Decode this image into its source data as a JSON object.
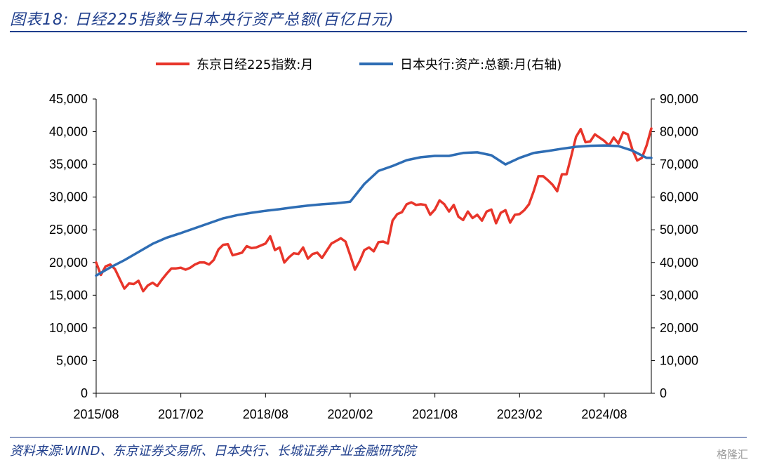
{
  "header": {
    "title": "图表18: 日经225指数与日本央行资产总额(百亿日元)"
  },
  "footer": {
    "source": "资料来源:WIND、东京证券交易所、日本央行、长城证券产业金融研究院",
    "watermark": "格隆汇"
  },
  "colors": {
    "nikkei": "#e8352a",
    "boj": "#2e6db4",
    "accent": "#1f3e8c"
  },
  "chart_data": {
    "type": "line",
    "x_ticks": [
      "2015/08",
      "2017/02",
      "2018/08",
      "2020/02",
      "2021/08",
      "2023/02",
      "2024/08"
    ],
    "x_start": "2015/08",
    "x_end": "2025/06",
    "left_axis": {
      "min": 0,
      "max": 45000,
      "ticks": [
        "0",
        "5,000",
        "10,000",
        "15,000",
        "20,000",
        "25,000",
        "30,000",
        "35,000",
        "40,000",
        "45,000"
      ]
    },
    "right_axis": {
      "min": 0,
      "max": 90000,
      "ticks": [
        "0",
        "10,000",
        "20,000",
        "30,000",
        "40,000",
        "50,000",
        "60,000",
        "70,000",
        "80,000",
        "90,000"
      ]
    },
    "legend_placement": "top",
    "series": [
      {
        "name": "东京日经225指数:月",
        "axis": "left",
        "x": [
          "2015/08",
          "2015/09",
          "2015/10",
          "2015/11",
          "2015/12",
          "2016/01",
          "2016/02",
          "2016/03",
          "2016/04",
          "2016/05",
          "2016/06",
          "2016/07",
          "2016/08",
          "2016/09",
          "2016/10",
          "2016/11",
          "2016/12",
          "2017/01",
          "2017/02",
          "2017/03",
          "2017/04",
          "2017/05",
          "2017/06",
          "2017/07",
          "2017/08",
          "2017/09",
          "2017/10",
          "2017/11",
          "2017/12",
          "2018/01",
          "2018/02",
          "2018/03",
          "2018/04",
          "2018/05",
          "2018/06",
          "2018/07",
          "2018/08",
          "2018/09",
          "2018/10",
          "2018/11",
          "2018/12",
          "2019/01",
          "2019/02",
          "2019/03",
          "2019/04",
          "2019/05",
          "2019/06",
          "2019/07",
          "2019/08",
          "2019/09",
          "2019/10",
          "2019/11",
          "2019/12",
          "2020/01",
          "2020/02",
          "2020/03",
          "2020/04",
          "2020/05",
          "2020/06",
          "2020/07",
          "2020/08",
          "2020/09",
          "2020/10",
          "2020/11",
          "2020/12",
          "2021/01",
          "2021/02",
          "2021/03",
          "2021/04",
          "2021/05",
          "2021/06",
          "2021/07",
          "2021/08",
          "2021/09",
          "2021/10",
          "2021/11",
          "2021/12",
          "2022/01",
          "2022/02",
          "2022/03",
          "2022/04",
          "2022/05",
          "2022/06",
          "2022/07",
          "2022/08",
          "2022/09",
          "2022/10",
          "2022/11",
          "2022/12",
          "2023/01",
          "2023/02",
          "2023/03",
          "2023/04",
          "2023/05",
          "2023/06",
          "2023/07",
          "2023/08",
          "2023/09",
          "2023/10",
          "2023/11",
          "2023/12",
          "2024/01",
          "2024/02",
          "2024/03",
          "2024/04",
          "2024/05",
          "2024/06",
          "2024/07",
          "2024/08",
          "2024/09",
          "2024/10",
          "2024/11",
          "2024/12",
          "2025/01",
          "2025/02",
          "2025/03",
          "2025/04",
          "2025/05",
          "2025/06"
        ],
        "values": [
          20000,
          18100,
          19400,
          19700,
          19000,
          17500,
          16000,
          16800,
          16700,
          17200,
          15600,
          16500,
          16900,
          16400,
          17400,
          18300,
          19100,
          19100,
          19200,
          18900,
          19200,
          19700,
          20000,
          20000,
          19700,
          20400,
          22000,
          22700,
          22800,
          21100,
          21300,
          21500,
          22500,
          22200,
          22300,
          22600,
          22900,
          24000,
          21900,
          22300,
          20000,
          20800,
          21400,
          21300,
          22300,
          20600,
          21300,
          21500,
          20700,
          21800,
          22900,
          23300,
          23700,
          23200,
          21100,
          18900,
          20200,
          21900,
          22300,
          21700,
          23100,
          23200,
          22900,
          26400,
          27400,
          27700,
          28900,
          29200,
          28800,
          28900,
          28800,
          27300,
          28100,
          29500,
          28900,
          27800,
          28800,
          27000,
          26500,
          27800,
          26800,
          27300,
          26400,
          27800,
          28100,
          26000,
          27600,
          28000,
          26100,
          27300,
          27400,
          28000,
          28900,
          30900,
          33200,
          33200,
          32600,
          31900,
          30900,
          33500,
          33500,
          36300,
          39200,
          40400,
          38400,
          38500,
          39600,
          39100,
          38600,
          37900,
          39100,
          38200,
          39900,
          39600,
          37200,
          35600,
          36000,
          37900,
          40500
        ]
      },
      {
        "name": "日本央行:资产:总额:月(右轴)",
        "axis": "right",
        "x": [
          "2015/08",
          "2015/11",
          "2016/02",
          "2016/05",
          "2016/08",
          "2016/11",
          "2017/02",
          "2017/05",
          "2017/08",
          "2017/11",
          "2018/02",
          "2018/05",
          "2018/08",
          "2018/11",
          "2019/02",
          "2019/05",
          "2019/08",
          "2019/11",
          "2020/02",
          "2020/05",
          "2020/08",
          "2020/11",
          "2021/02",
          "2021/05",
          "2021/08",
          "2021/11",
          "2022/02",
          "2022/05",
          "2022/08",
          "2022/11",
          "2023/02",
          "2023/05",
          "2023/08",
          "2023/11",
          "2024/02",
          "2024/05",
          "2024/08",
          "2024/11",
          "2025/02",
          "2025/05",
          "2025/06"
        ],
        "values": [
          36000,
          38500,
          40700,
          43200,
          45700,
          47600,
          49000,
          50500,
          52000,
          53500,
          54500,
          55200,
          55800,
          56300,
          56900,
          57400,
          57800,
          58100,
          58600,
          64000,
          68000,
          69500,
          71300,
          72200,
          72600,
          72600,
          73500,
          73700,
          72800,
          70000,
          72000,
          73500,
          74100,
          74800,
          75400,
          75700,
          75800,
          75600,
          74200,
          72000,
          72000
        ]
      }
    ]
  }
}
